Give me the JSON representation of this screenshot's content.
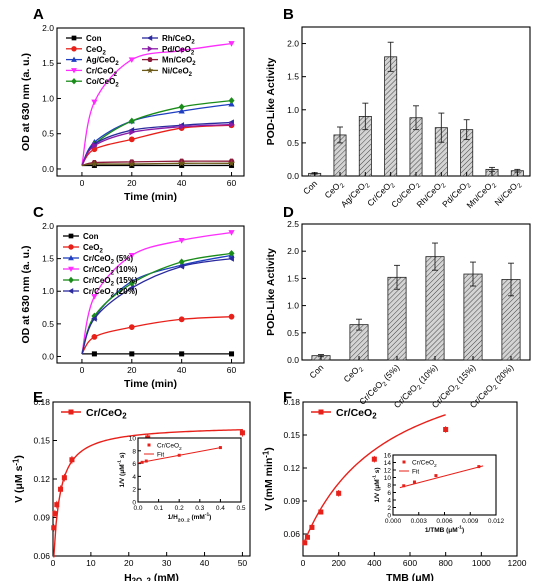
{
  "chart_data": [
    {
      "panel": "A",
      "type": "line",
      "xlabel": "Time (min)",
      "ylabel": "OD at 630 nm (a. u.)",
      "xlim": [
        -10,
        65
      ],
      "ylim": [
        -0.1,
        2.0
      ],
      "xticks": [
        0,
        20,
        40,
        60
      ],
      "yticks": [
        0.0,
        0.5,
        1.0,
        1.5,
        2.0
      ],
      "x": [
        0,
        5,
        20,
        40,
        60
      ],
      "legend_columns": 2,
      "series": [
        {
          "name": "Con",
          "color": "#000000",
          "marker": "square",
          "values": [
            0.05,
            0.05,
            0.05,
            0.05,
            0.05
          ]
        },
        {
          "name": "CeO2",
          "color": "#e8201a",
          "marker": "circle",
          "values": [
            0.05,
            0.28,
            0.42,
            0.58,
            0.62
          ]
        },
        {
          "name": "Ag/CeO2",
          "color": "#1f3fc0",
          "marker": "triangle-up",
          "values": [
            0.05,
            0.38,
            0.68,
            0.82,
            0.92
          ]
        },
        {
          "name": "Cr/CeO2",
          "color": "#ff2cff",
          "marker": "triangle-down",
          "values": [
            0.05,
            0.95,
            1.55,
            1.68,
            1.78
          ]
        },
        {
          "name": "Co/CeO2",
          "color": "#1a8c1a",
          "marker": "diamond",
          "values": [
            0.05,
            0.35,
            0.68,
            0.88,
            0.97
          ]
        },
        {
          "name": "Rh/CeO2",
          "color": "#2a2a9e",
          "marker": "triangle-left",
          "values": [
            0.05,
            0.35,
            0.55,
            0.62,
            0.66
          ]
        },
        {
          "name": "Pd/CeO2",
          "color": "#8a1aa8",
          "marker": "triangle-right",
          "values": [
            0.05,
            0.33,
            0.52,
            0.6,
            0.63
          ]
        },
        {
          "name": "Mn/CeO2",
          "color": "#8b1a3a",
          "marker": "hexagon",
          "values": [
            0.05,
            0.09,
            0.1,
            0.11,
            0.11
          ]
        },
        {
          "name": "Ni/CeO2",
          "color": "#6b5a1a",
          "marker": "star",
          "values": [
            0.05,
            0.07,
            0.07,
            0.08,
            0.08
          ]
        }
      ]
    },
    {
      "panel": "B",
      "type": "bar",
      "ylabel": "POD-Like Activity",
      "ylim": [
        0,
        2.25
      ],
      "yticks": [
        0.0,
        0.5,
        1.0,
        1.5,
        2.0
      ],
      "categories": [
        "Con",
        "CeO2",
        "Ag/CeO2",
        "Cr/CeO2",
        "Co/CeO2",
        "Rh/CeO2",
        "Pd/CeO2",
        "Mn/CeO2",
        "Ni/CeO2"
      ],
      "values": [
        0.04,
        0.62,
        0.9,
        1.8,
        0.88,
        0.73,
        0.7,
        0.1,
        0.08
      ],
      "errors": [
        0.01,
        0.12,
        0.2,
        0.22,
        0.18,
        0.22,
        0.15,
        0.03,
        0.02
      ]
    },
    {
      "panel": "C",
      "type": "line",
      "xlabel": "Time (min)",
      "ylabel": "OD at 630 nm (a. u.)",
      "xlim": [
        -10,
        65
      ],
      "ylim": [
        -0.1,
        2.0
      ],
      "xticks": [
        0,
        20,
        40,
        60
      ],
      "yticks": [
        0.0,
        0.5,
        1.0,
        1.5,
        2.0
      ],
      "x": [
        0,
        5,
        20,
        40,
        60
      ],
      "legend_columns": 1,
      "series": [
        {
          "name": "Con",
          "color": "#000000",
          "marker": "square",
          "values": [
            0.04,
            0.04,
            0.04,
            0.04,
            0.04
          ]
        },
        {
          "name": "CeO2",
          "color": "#e8201a",
          "marker": "circle",
          "values": [
            0.04,
            0.3,
            0.45,
            0.57,
            0.61
          ]
        },
        {
          "name": "Cr/CeO2 (5%)",
          "color": "#1f3fc0",
          "marker": "triangle-up",
          "values": [
            0.04,
            0.6,
            1.15,
            1.4,
            1.55
          ]
        },
        {
          "name": "Cr/CeO2 (10%)",
          "color": "#ff2cff",
          "marker": "triangle-down",
          "values": [
            0.04,
            0.92,
            1.55,
            1.78,
            1.9
          ]
        },
        {
          "name": "Cr/CeO2 (15%)",
          "color": "#1a8c1a",
          "marker": "diamond",
          "values": [
            0.04,
            0.62,
            1.12,
            1.45,
            1.58
          ]
        },
        {
          "name": "Cr/CeO2 (20%)",
          "color": "#2a2a9e",
          "marker": "triangle-left",
          "values": [
            0.04,
            0.58,
            1.05,
            1.38,
            1.5
          ]
        }
      ]
    },
    {
      "panel": "D",
      "type": "bar",
      "ylabel": "POD-Like Activity",
      "ylim": [
        0,
        2.5
      ],
      "yticks": [
        0.0,
        0.5,
        1.0,
        1.5,
        2.0,
        2.5
      ],
      "categories": [
        "Con",
        "CeO2",
        "Cr/CeO2 (5%)",
        "Cr/CeO2 (10%)",
        "Cr/CeO2 (15%)",
        "Cr/CeO2 (20%)"
      ],
      "values": [
        0.08,
        0.65,
        1.52,
        1.9,
        1.58,
        1.48
      ],
      "errors": [
        0.02,
        0.1,
        0.22,
        0.25,
        0.22,
        0.3
      ]
    },
    {
      "panel": "E",
      "type": "scatter",
      "xlabel": "H2O2 (mM)",
      "ylabel": "V (μM s-1)",
      "xlim": [
        0,
        52
      ],
      "ylim": [
        0.06,
        0.18
      ],
      "xticks": [
        0,
        10,
        20,
        30,
        40,
        50
      ],
      "yticks": [
        0.06,
        0.09,
        0.12,
        0.15,
        0.18
      ],
      "series": [
        {
          "name": "Cr/CeO2",
          "color": "#e8201a",
          "points": [
            [
              0.2,
              0.082
            ],
            [
              0.5,
              0.093
            ],
            [
              1,
              0.1
            ],
            [
              2,
              0.112
            ],
            [
              3,
              0.121
            ],
            [
              5,
              0.135
            ],
            [
              25,
              0.152
            ],
            [
              50,
              0.156
            ]
          ],
          "errors": [
            0.003,
            0.003,
            0.003,
            0.003,
            0.003,
            0.003,
            0.003,
            0.003
          ],
          "fit": {
            "vmax": 0.162,
            "km": 1.6,
            "v0": 0.046
          }
        }
      ],
      "inset": {
        "xlabel": "1/H2O2 (mM-1)",
        "ylabel": "1/V (μM-1 s)",
        "xlim": [
          0,
          0.5
        ],
        "ylim": [
          0,
          10
        ],
        "xticks": [
          0.0,
          0.1,
          0.2,
          0.3,
          0.4,
          0.5
        ],
        "yticks": [
          0,
          2,
          4,
          6,
          8,
          10
        ],
        "legend": [
          "Cr/CeO2",
          "Fit"
        ],
        "points": [
          [
            0.02,
            6.2
          ],
          [
            0.04,
            6.4
          ],
          [
            0.2,
            7.3
          ],
          [
            0.4,
            8.5
          ]
        ],
        "fit_line": [
          [
            0.0,
            6.1
          ],
          [
            0.4,
            8.5
          ]
        ]
      }
    },
    {
      "panel": "F",
      "type": "scatter",
      "xlabel": "TMB (μM)",
      "ylabel": "V (mM min-1)",
      "xlim": [
        0,
        1200
      ],
      "ylim": [
        0.04,
        0.18
      ],
      "xticks": [
        0,
        200,
        400,
        600,
        800,
        1000,
        1200
      ],
      "yticks": [
        0.06,
        0.09,
        0.12,
        0.15,
        0.18
      ],
      "series": [
        {
          "name": "Cr/CeO2",
          "color": "#e8201a",
          "points": [
            [
              10,
              0.052
            ],
            [
              25,
              0.057
            ],
            [
              50,
              0.066
            ],
            [
              100,
              0.08
            ],
            [
              200,
              0.097
            ],
            [
              400,
              0.128
            ],
            [
              800,
              0.155
            ]
          ],
          "errors": [
            0.002,
            0.002,
            0.002,
            0.002,
            0.003,
            0.003,
            0.003
          ],
          "fit": {
            "vmax": 0.238,
            "km": 470,
            "v0": 0.05
          }
        }
      ],
      "inset": {
        "xlabel": "1/TMB (μM-1)",
        "ylabel": "1/V (μM-1 s)",
        "xlim": [
          0,
          0.012
        ],
        "ylim": [
          0,
          16
        ],
        "xticks": [
          0.0,
          0.003,
          0.006,
          0.009,
          0.012
        ],
        "yticks": [
          0,
          2,
          4,
          6,
          8,
          10,
          12,
          14,
          16
        ],
        "legend": [
          "Cr/CeO2",
          "Fit"
        ],
        "points": [
          [
            0.00125,
            7.8
          ],
          [
            0.0025,
            8.8
          ],
          [
            0.005,
            10.5
          ],
          [
            0.01,
            12.9
          ]
        ],
        "fit_line": [
          [
            0.0008,
            7.3
          ],
          [
            0.0105,
            13.1
          ]
        ]
      }
    }
  ]
}
